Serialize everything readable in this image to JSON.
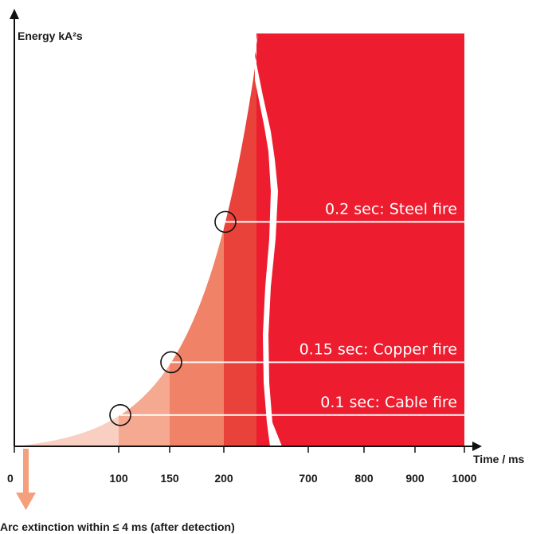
{
  "chart_data": {
    "type": "area",
    "ylabel": "Energy kA²s",
    "xlabel": "Time / ms",
    "x_ticks": [
      "0",
      "100",
      "150",
      "200",
      "700",
      "800",
      "900",
      "1000"
    ],
    "axis_break": "between 200 and 700 ms",
    "regions": [
      {
        "from": "0",
        "to": "100",
        "color": "#f8cfc0"
      },
      {
        "from": "100",
        "to": "150",
        "color": "#f4a990"
      },
      {
        "from": "150",
        "to": "200",
        "color": "#f08267"
      },
      {
        "from": "200",
        "to": "break",
        "color": "#e8423a"
      },
      {
        "from": "break",
        "to": "1000",
        "color": "#ed1c2e"
      }
    ],
    "thresholds": [
      {
        "time_s": 0.1,
        "time_ms": 100,
        "label": "0.1 sec: Cable fire"
      },
      {
        "time_s": 0.15,
        "time_ms": 150,
        "label": "0.15 sec: Copper fire"
      },
      {
        "time_s": 0.2,
        "time_ms": 200,
        "label": "0.2 sec: Steel fire"
      }
    ],
    "annotation": "Arc extinction within ≤ 4 ms (after detection)",
    "annotation_color": "#f4a07c"
  }
}
